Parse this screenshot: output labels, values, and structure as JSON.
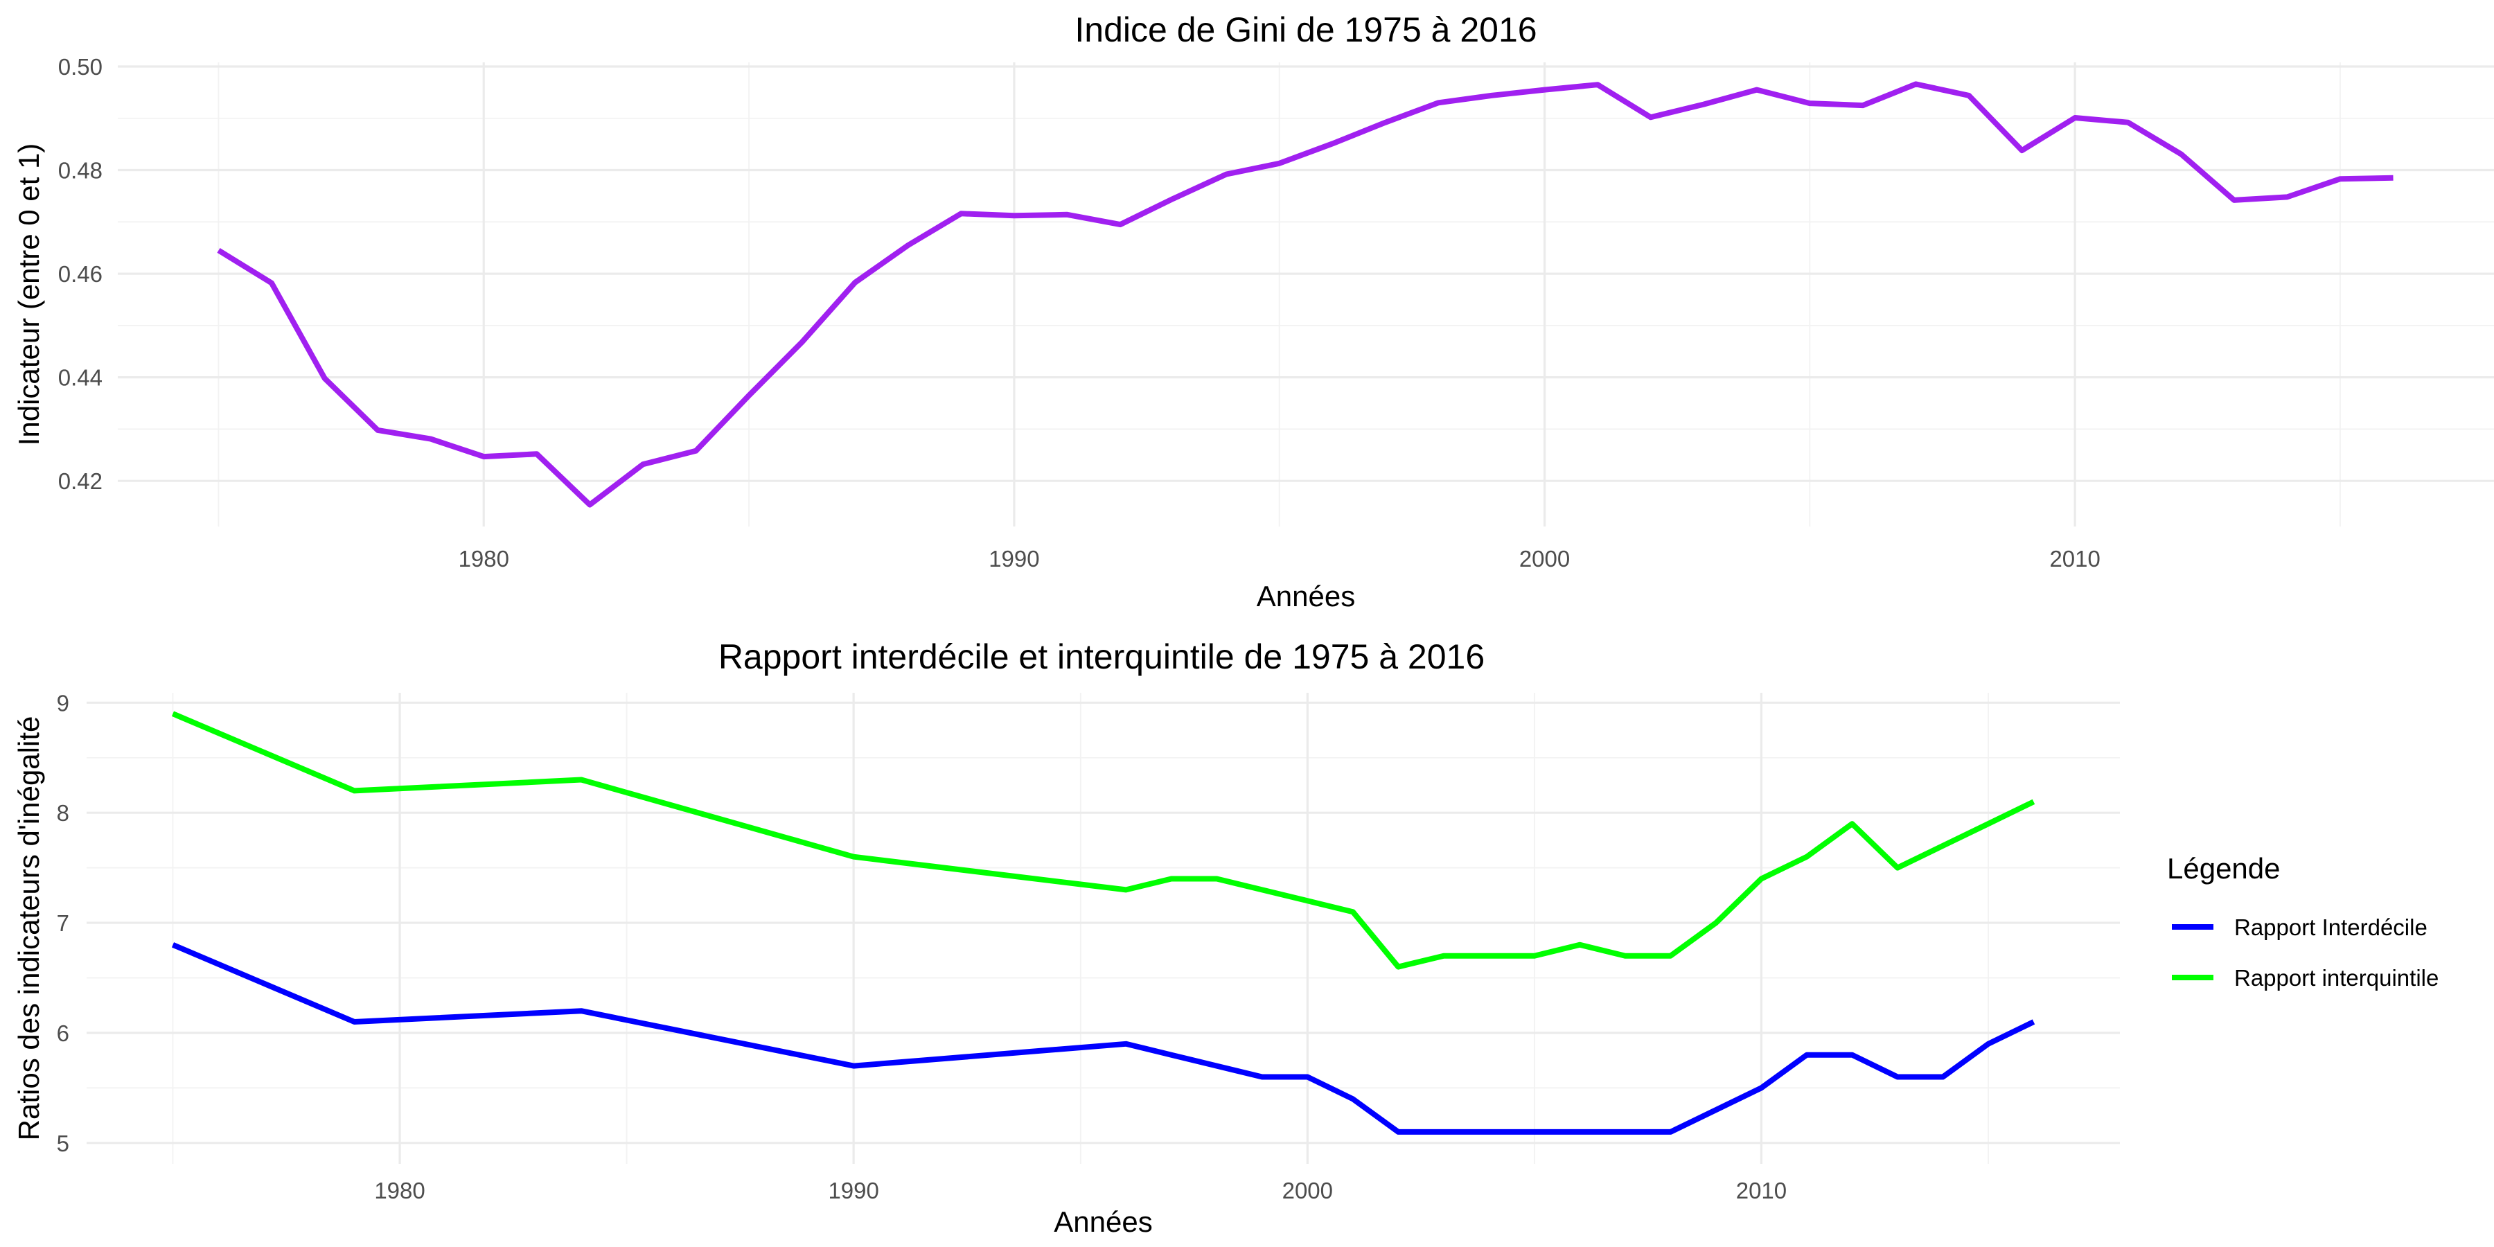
{
  "chart_data": [
    {
      "type": "line",
      "title": "Indice de Gini de 1975 à 2016",
      "xlabel": "Années",
      "ylabel": "Indicateur (entre 0 et 1)",
      "xlim": [
        1973.1,
        2017.9
      ],
      "ylim": [
        0.4112,
        0.5008
      ],
      "x_ticks": [
        1980,
        1990,
        2000,
        2010
      ],
      "y_ticks": [
        0.42,
        0.44,
        0.46,
        0.48,
        0.5
      ],
      "y_tick_labels": [
        "0.42",
        "0.44",
        "0.46",
        "0.48",
        "0.50"
      ],
      "grid": true,
      "x": [
        1975,
        1976,
        1977,
        1978,
        1979,
        1980,
        1981,
        1982,
        1983,
        1984,
        1985,
        1986,
        1987,
        1988,
        1989,
        1990,
        1991,
        1992,
        1993,
        1994,
        1995,
        1996,
        1997,
        1998,
        1999,
        2000,
        2001,
        2002,
        2003,
        2004,
        2005,
        2006,
        2007,
        2008,
        2009,
        2010,
        2011,
        2012,
        2013,
        2014,
        2015,
        2016
      ],
      "series": [
        {
          "color": "#a020f0",
          "values": [
            0.4645,
            0.4582,
            0.4398,
            0.4298,
            0.4281,
            0.4247,
            0.4252,
            0.4154,
            0.4232,
            0.4258,
            0.4365,
            0.4468,
            0.4583,
            0.4655,
            0.4716,
            0.4712,
            0.4714,
            0.4695,
            0.4745,
            0.4792,
            0.4813,
            0.4851,
            0.4892,
            0.493,
            0.4944,
            0.4955,
            0.4965,
            0.4902,
            0.4927,
            0.4955,
            0.4929,
            0.4925,
            0.4966,
            0.4944,
            0.4838,
            0.4901,
            0.4892,
            0.4831,
            0.4742,
            0.4748,
            0.4783,
            0.4785
          ]
        }
      ]
    },
    {
      "type": "line",
      "title": "Rapport interdécile et interquintile de 1975 à 2016",
      "xlabel": "Années",
      "ylabel": "Ratios des indicateurs d'inégalité",
      "xlim": [
        1973.1,
        2017.9
      ],
      "ylim": [
        4.81,
        9.09
      ],
      "x_ticks": [
        1980,
        1990,
        2000,
        2010
      ],
      "y_ticks": [
        5,
        6,
        7,
        8,
        9
      ],
      "y_tick_labels": [
        "5",
        "6",
        "7",
        "8",
        "9"
      ],
      "grid": true,
      "legend": {
        "title": "Légende",
        "position": "right"
      },
      "series": [
        {
          "name": "Rapport Interdécile",
          "color": "#0000ff",
          "x": [
            1975,
            1979,
            1984,
            1990,
            1996,
            1997,
            1998,
            1999,
            2000,
            2001,
            2002,
            2003,
            2004,
            2005,
            2006,
            2007,
            2008,
            2009,
            2010,
            2011,
            2012,
            2013,
            2014,
            2015,
            2016
          ],
          "values": [
            6.8,
            6.1,
            6.2,
            5.7,
            5.9,
            5.8,
            5.7,
            5.6,
            5.6,
            5.4,
            5.1,
            5.1,
            5.1,
            5.1,
            5.1,
            5.1,
            5.1,
            5.3,
            5.5,
            5.8,
            5.8,
            5.6,
            5.6,
            5.9,
            6.1
          ]
        },
        {
          "name": "Rapport interquintile",
          "color": "#00ff00",
          "x": [
            1975,
            1979,
            1984,
            1990,
            1996,
            1997,
            1998,
            1999,
            2000,
            2001,
            2002,
            2003,
            2004,
            2005,
            2006,
            2007,
            2008,
            2009,
            2010,
            2011,
            2012,
            2013,
            2014,
            2015,
            2016
          ],
          "values": [
            8.9,
            8.2,
            8.3,
            7.6,
            7.3,
            7.4,
            7.4,
            7.3,
            7.2,
            7.1,
            6.6,
            6.7,
            6.7,
            6.7,
            6.8,
            6.7,
            6.7,
            7.0,
            7.4,
            7.6,
            7.9,
            7.5,
            7.7,
            7.9,
            8.1
          ]
        }
      ]
    }
  ]
}
